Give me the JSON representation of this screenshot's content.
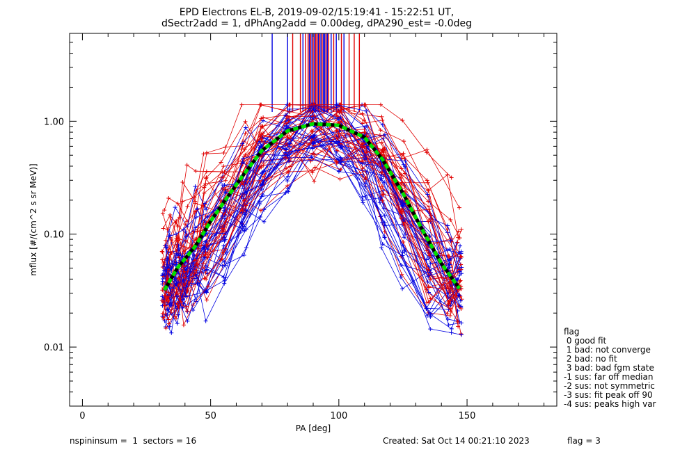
{
  "chart_data": {
    "type": "line",
    "title_line1": "EPD Electrons EL-B, 2019-09-02/15:19:41 - 15:22:51 UT,",
    "title_line2": "dSectr2add = 1, dPhAng2add = 0.00deg, dPA290_est=  -0.0deg",
    "xlabel": "PA [deg]",
    "ylabel": "mflux [#/(cm^2 s sr MeV)]",
    "xlim": [
      -5,
      185
    ],
    "ylim": [
      0.003,
      6.0
    ],
    "yscale": "log",
    "xticks": [
      0,
      50,
      100,
      150
    ],
    "xtick_labels": [
      "0",
      "50",
      "100",
      "150"
    ],
    "yticks": [
      0.01,
      0.1,
      1.0
    ],
    "ytick_labels": [
      "0.01",
      "0.10",
      "1.00"
    ],
    "pa_bins": [
      32,
      34,
      37,
      40,
      44,
      48,
      55,
      63,
      70,
      80,
      90,
      100,
      110,
      117,
      125,
      135,
      143,
      147
    ],
    "median_fit": {
      "x": [
        32,
        37,
        44,
        50,
        57,
        63,
        70,
        80,
        90,
        100,
        110,
        117,
        125,
        133,
        140,
        147
      ],
      "y": [
        0.032,
        0.05,
        0.078,
        0.13,
        0.22,
        0.34,
        0.55,
        0.82,
        0.95,
        0.92,
        0.72,
        0.46,
        0.23,
        0.105,
        0.055,
        0.033
      ]
    },
    "colors": {
      "red_series": "#e00000",
      "blue_series": "#0000e0",
      "fit": "#00e000",
      "fit_core": "#000000",
      "frame": "#000000"
    },
    "peak_marker_x": [
      74,
      80,
      82,
      85,
      86,
      87,
      88,
      88.5,
      89,
      89.5,
      90,
      90.5,
      91,
      91.5,
      92,
      92.5,
      93,
      93.5,
      94,
      94.5,
      95,
      95.5,
      96,
      97,
      98,
      99,
      101,
      102,
      104,
      106,
      108
    ],
    "peak_marker_colors": [
      "#0000e0",
      "#0000e0",
      "#e00000",
      "#e00000",
      "#0000e0",
      "#e00000",
      "#e00000",
      "#0000e0",
      "#e00000",
      "#0000e0",
      "#e00000",
      "#0000e0",
      "#e00000",
      "#e00000",
      "#0000e0",
      "#e00000",
      "#0000e0",
      "#e00000",
      "#0000e0",
      "#0000e0",
      "#e00000",
      "#0000e0",
      "#e00000",
      "#0000e0",
      "#e00000",
      "#0000e0",
      "#e00000",
      "#0000e0",
      "#e00000",
      "#e00000",
      "#e00000"
    ],
    "legend": {
      "title": "flag",
      "entries": [
        " 0 good fit",
        " 1 bad: not converge",
        " 2 bad: no fit",
        " 3 bad: bad fgm state",
        "-1 sus: far off median",
        "-2 sus: not symmetric",
        "-3 sus: fit peak off 90",
        "-4 sus: peaks high var"
      ]
    }
  },
  "footer": {
    "left": "nspininsum =  1  sectors = 16",
    "created": "Created: Sat Oct 14 00:21:10 2023",
    "flag": "flag = 3"
  }
}
